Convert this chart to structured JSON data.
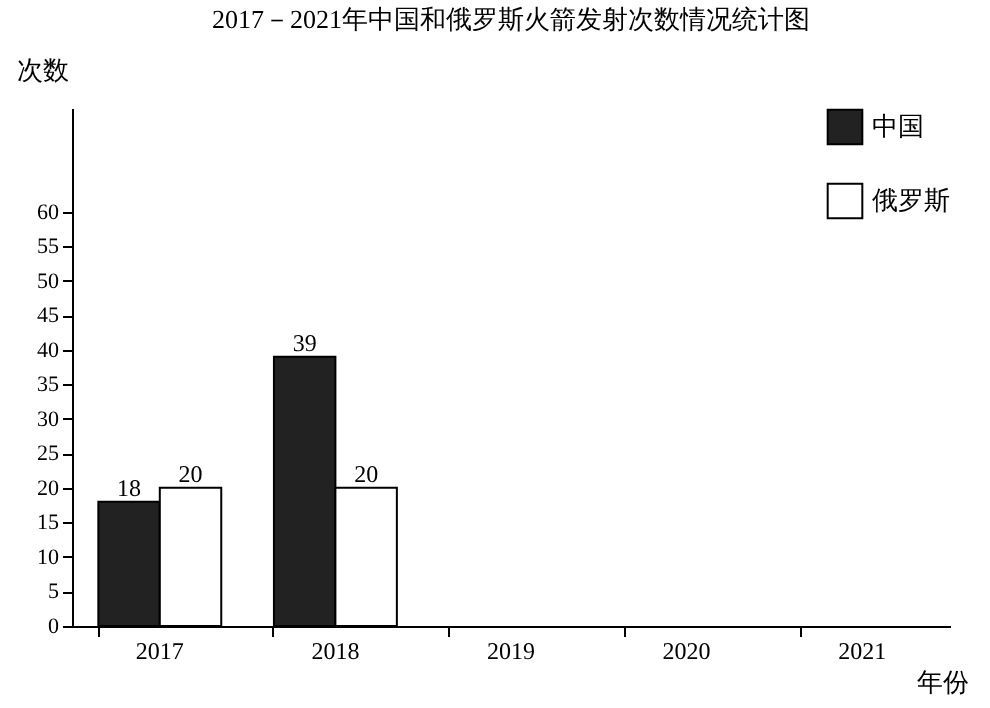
{
  "chart_data": {
    "type": "bar",
    "title": "2017－2021年中国和俄罗斯火箭发射次数情况统计图",
    "xlabel": "年份",
    "ylabel": "次数",
    "categories": [
      "2017",
      "2018",
      "2019",
      "2020",
      "2021"
    ],
    "series": [
      {
        "name": "中国",
        "color": "#222222",
        "values": [
          18,
          39,
          null,
          null,
          null
        ]
      },
      {
        "name": "俄罗斯",
        "color": "#ffffff",
        "values": [
          20,
          20,
          null,
          null,
          null
        ]
      }
    ],
    "ylim": [
      0,
      75
    ],
    "yticks": [
      0,
      5,
      10,
      15,
      20,
      25,
      30,
      35,
      40,
      45,
      50,
      55,
      60
    ],
    "data_labels": true,
    "legend": "top right",
    "grid": false
  }
}
